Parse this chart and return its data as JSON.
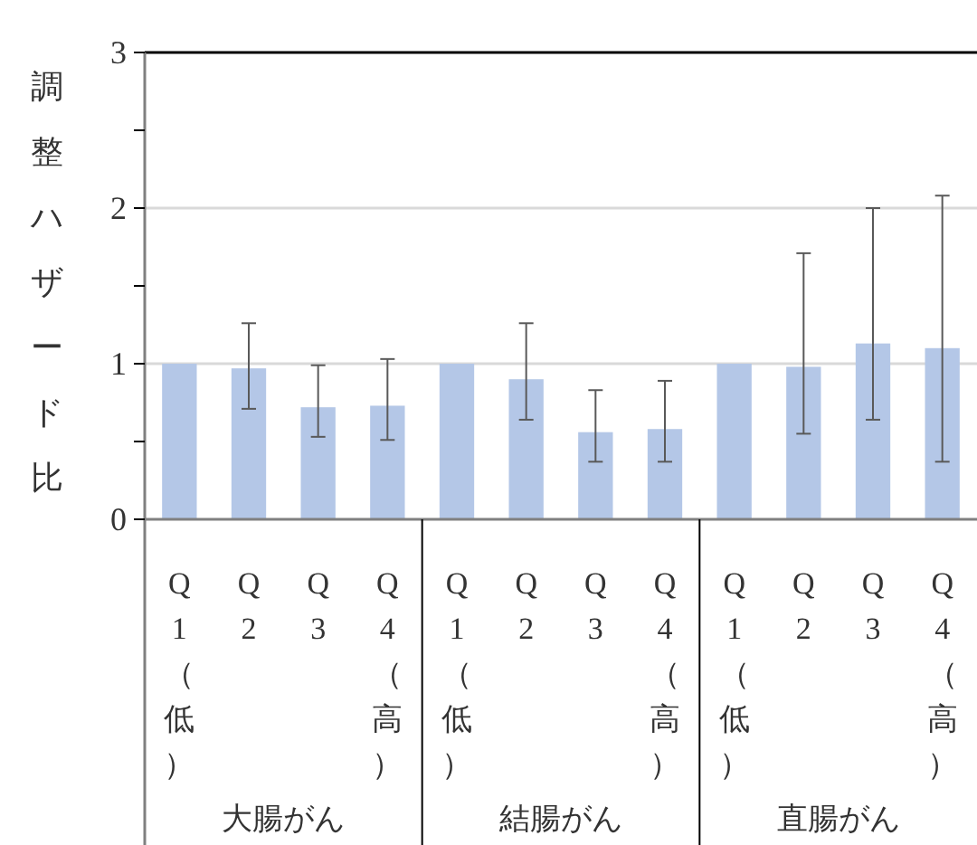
{
  "chart_data": {
    "type": "bar",
    "ylabel": "調整ハザード比",
    "categories": [
      "Q1（低）",
      "Q2",
      "Q3",
      "Q4（高）",
      "Q1（低）",
      "Q2",
      "Q3",
      "Q4（高）",
      "Q1（低）",
      "Q2",
      "Q3",
      "Q4（高）"
    ],
    "series": [
      {
        "color": "#b4c7e7",
        "values": [
          1.0,
          0.97,
          0.72,
          0.73,
          1.0,
          0.9,
          0.56,
          0.58,
          1.0,
          0.98,
          1.13,
          1.1
        ],
        "errors": [
          null,
          [
            0.71,
            1.26
          ],
          [
            0.53,
            0.99
          ],
          [
            0.51,
            1.03
          ],
          null,
          [
            0.64,
            1.26
          ],
          [
            0.37,
            0.83
          ],
          [
            0.37,
            0.89
          ],
          null,
          [
            0.55,
            1.71
          ],
          [
            0.64,
            2.0
          ],
          [
            0.37,
            2.08
          ]
        ]
      }
    ],
    "ylim": [
      0,
      3
    ],
    "yticks": [
      0,
      {
        "value": 0.5,
        "label": null
      },
      1,
      {
        "value": 1.5,
        "label": null
      },
      2,
      {
        "value": 2.5,
        "label": null
      },
      3
    ],
    "grid": "y",
    "annotations": [
      "大腸がん",
      "結腸がん",
      "直腸がん"
    ]
  }
}
